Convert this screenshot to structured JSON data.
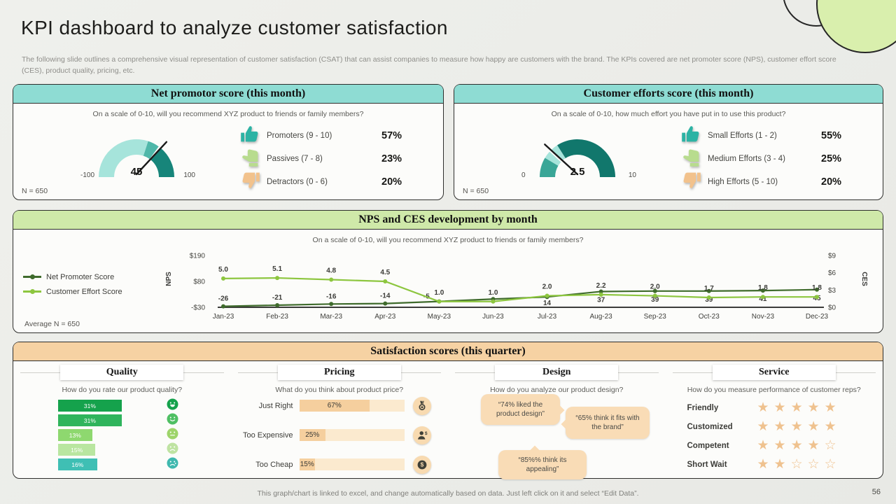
{
  "page": {
    "title": "KPI dashboard to analyze customer satisfaction",
    "subtitle": "The following slide outlines a comprehensive visual representation of customer satisfaction (CSAT) that can assist companies to measure how happy are customers with the brand. The KPIs covered are net promoter score (NPS), customer effort score (CES), product quality, pricing, etc.",
    "footer": "This graph/chart is linked to excel, and change automatically based on data. Just left click on it and select “Edit Data”.",
    "page_number": "56"
  },
  "satisfaction": {
    "title": "Satisfaction scores (this quarter)"
  },
  "chart_data": [
    {
      "id": "nps-gauge",
      "type": "gauge",
      "title": "Net promotor score (this month)",
      "question": "On a scale of 0-10, will you recommend XYZ product to friends or family members?",
      "n": "N = 650",
      "min": -100,
      "max": 100,
      "value": 45,
      "min_label": "-100",
      "value_label": "45",
      "max_label": "100",
      "segments": [
        {
          "frac": 0.6,
          "color": "#a6e4db"
        },
        {
          "frac": 0.1,
          "color": "#4fb7a9"
        },
        {
          "frac": 0.02,
          "color": "#fcfcfa"
        },
        {
          "frac": 0.28,
          "color": "#17857a"
        }
      ],
      "legend": [
        {
          "icon": "thumb-up-icon",
          "label": "Promoters (9 - 10)",
          "value": "57%",
          "color": "#2cb3a4"
        },
        {
          "icon": "thumb-flat-icon",
          "label": "Passives (7 - 8)",
          "value": "23%",
          "color": "#b8dc8e"
        },
        {
          "icon": "thumb-down-icon",
          "label": "Detractors (0 - 6)",
          "value": "20%",
          "color": "#f2c28c"
        }
      ]
    },
    {
      "id": "ces-gauge",
      "type": "gauge",
      "title": "Customer efforts score (this month)",
      "question": "On a scale of 0-10, how much effort you have put in to use this product?",
      "n": "N = 650",
      "min": 0,
      "max": 10,
      "value": 2.5,
      "min_label": "0",
      "value_label": "2.5",
      "max_label": "10",
      "segments": [
        {
          "frac": 0.17,
          "color": "#3aa697"
        },
        {
          "frac": 0.065,
          "color": "#a6e4db"
        },
        {
          "frac": 0.02,
          "color": "#fcfcfa"
        },
        {
          "frac": 0.065,
          "color": "#a6e4db"
        },
        {
          "frac": 0.68,
          "color": "#11776c"
        }
      ],
      "legend": [
        {
          "icon": "thumb-up-icon",
          "label": "Small Efforts (1 - 2)",
          "value": "55%",
          "color": "#2cb3a4"
        },
        {
          "icon": "thumb-flat-icon",
          "label": "Medium Efforts (3 - 4)",
          "value": "25%",
          "color": "#b8dc8e"
        },
        {
          "icon": "thumb-down-icon",
          "label": "High Efforts (5 - 10)",
          "value": "20%",
          "color": "#f2c28c"
        }
      ]
    },
    {
      "id": "trend",
      "type": "line",
      "title": "NPS and CES development by month",
      "question": "On a scale of 0-10, will you recommend XYZ product to friends or family members?",
      "avg": "Average N = 650",
      "categories": [
        "Jan-23",
        "Feb-23",
        "Mar-23",
        "Apr-23",
        "May-23",
        "Jun-23",
        "Jul-23",
        "Aug-23",
        "Sep-23",
        "Oct-23",
        "Nov-23",
        "Dec-23"
      ],
      "series": [
        {
          "name": "Net Promoter Score",
          "color": "#3f6b2c",
          "axis": "left",
          "label_pos": "auto",
          "values": [
            -26,
            -21,
            -16,
            -14,
            -5,
            5,
            14,
            37,
            39,
            39,
            41,
            45
          ],
          "labels": [
            "-26",
            "-21",
            "-16",
            "-14",
            "-5",
            "",
            "14",
            "37",
            "39",
            "39",
            "41",
            "45"
          ]
        },
        {
          "name": "Customer Effort Score",
          "color": "#8dc63f",
          "axis": "right",
          "label_pos": "above",
          "values": [
            5.0,
            5.1,
            4.8,
            4.5,
            1.0,
            1.0,
            2.0,
            2.2,
            2.0,
            1.7,
            1.8,
            1.8
          ],
          "labels": [
            "5.0",
            "5.1",
            "4.8",
            "4.5",
            "1.0",
            "1.0",
            "2.0",
            "2.2",
            "2.0",
            "1.7",
            "1.8",
            "1.8"
          ]
        }
      ],
      "left_axis": {
        "label": "NPS",
        "ticks": [
          "$190",
          "$80",
          "-$30"
        ],
        "min": -30,
        "max": 190
      },
      "right_axis": {
        "label": "CES",
        "ticks": [
          "$9",
          "$6",
          "$3",
          "$0"
        ],
        "min": 0,
        "max": 9
      }
    },
    {
      "id": "quality",
      "type": "bar",
      "title": "Quality",
      "question": "How do you rate our product quality?",
      "bars": [
        {
          "value": 31,
          "label": "31%",
          "color": "#15a24c",
          "face": "laugh",
          "face_color": "#15a24c"
        },
        {
          "value": 31,
          "label": "31%",
          "color": "#2fb45c",
          "face": "smile",
          "face_color": "#4fbf63"
        },
        {
          "value": 13,
          "label": "13%",
          "color": "#8ed86f",
          "face": "neutral",
          "face_color": "#9ed46a"
        },
        {
          "value": 15,
          "label": "15%",
          "color": "#b9e6a0",
          "face": "sad",
          "face_color": "#bfe3a2"
        },
        {
          "value": 16,
          "label": "16%",
          "color": "#3fbfb4",
          "face": "cry",
          "face_color": "#3fb8ae"
        }
      ]
    },
    {
      "id": "pricing",
      "type": "bar",
      "title": "Pricing",
      "question": "What do you think about product price?",
      "bars": [
        {
          "label": "Just Right",
          "value": 67,
          "value_label": "67%",
          "icon": "medal-icon"
        },
        {
          "label": "Too Expensive",
          "value": 25,
          "value_label": "25%",
          "icon": "person-dollar-icon"
        },
        {
          "label": "Too Cheap",
          "value": 15,
          "value_label": "15%",
          "icon": "coin-icon"
        }
      ]
    },
    {
      "id": "design",
      "type": "other",
      "title": "Design",
      "question": "How do you analyze our product design?",
      "bubbles": [
        "“74% liked the product design”",
        "“65% think it fits with the brand”",
        "“85%% think its appealing”"
      ]
    },
    {
      "id": "service",
      "type": "rating",
      "title": "Service",
      "question": "How do you measure performance of customer reps?",
      "max_stars": 5,
      "rows": [
        {
          "label": "Friendly",
          "stars": 5
        },
        {
          "label": "Customized",
          "stars": 5
        },
        {
          "label": "Competent",
          "stars": 4
        },
        {
          "label": "Short Wait",
          "stars": 2
        }
      ]
    }
  ]
}
